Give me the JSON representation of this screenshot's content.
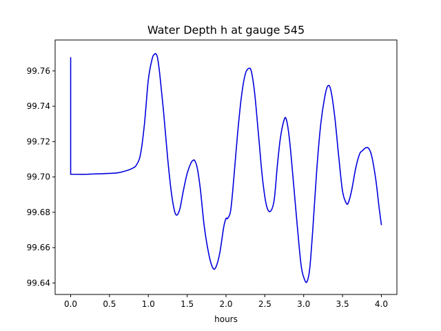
{
  "chart_data": {
    "type": "line",
    "title": "Water Depth h at gauge 545",
    "xlabel": "hours",
    "ylabel": "",
    "xlim": [
      -0.2,
      4.2
    ],
    "ylim": [
      99.6335,
      99.7775
    ],
    "xticks": [
      0.0,
      0.5,
      1.0,
      1.5,
      2.0,
      2.5,
      3.0,
      3.5,
      4.0
    ],
    "xtick_labels": [
      "0.0",
      "0.5",
      "1.0",
      "1.5",
      "2.0",
      "2.5",
      "3.0",
      "3.5",
      "4.0"
    ],
    "yticks": [
      99.64,
      99.66,
      99.68,
      99.7,
      99.72,
      99.74,
      99.76
    ],
    "ytick_labels": [
      "99.64",
      "99.66",
      "99.68",
      "99.70",
      "99.72",
      "99.74",
      "99.76"
    ],
    "grid": false,
    "series": [
      {
        "color": "#0000dd",
        "x": [
          0.0,
          0.0,
          0.1,
          0.2,
          0.3,
          0.4,
          0.5,
          0.6,
          0.7,
          0.8,
          0.85,
          0.9,
          0.95,
          1.0,
          1.05,
          1.08,
          1.1,
          1.12,
          1.15,
          1.2,
          1.25,
          1.3,
          1.35,
          1.4,
          1.45,
          1.5,
          1.55,
          1.58,
          1.6,
          1.63,
          1.67,
          1.72,
          1.78,
          1.83,
          1.87,
          1.92,
          1.97,
          2.0,
          2.02,
          2.06,
          2.1,
          2.15,
          2.2,
          2.25,
          2.3,
          2.33,
          2.37,
          2.42,
          2.47,
          2.52,
          2.57,
          2.62,
          2.66,
          2.7,
          2.75,
          2.78,
          2.82,
          2.87,
          2.92,
          2.97,
          3.02,
          3.05,
          3.08,
          3.12,
          3.17,
          3.22,
          3.27,
          3.31,
          3.35,
          3.4,
          3.45,
          3.5,
          3.55,
          3.58,
          3.62,
          3.67,
          3.72,
          3.76,
          3.8,
          3.84,
          3.88,
          3.93,
          3.97,
          4.0
        ],
        "y": [
          99.7675,
          99.7015,
          99.7015,
          99.7015,
          99.7017,
          99.7018,
          99.702,
          99.7023,
          99.7033,
          99.705,
          99.707,
          99.713,
          99.73,
          99.755,
          99.767,
          99.7695,
          99.7695,
          99.767,
          99.757,
          99.735,
          99.71,
          99.69,
          99.679,
          99.681,
          99.692,
          99.702,
          99.708,
          99.7095,
          99.709,
          99.705,
          99.693,
          99.672,
          99.656,
          99.6485,
          99.649,
          99.657,
          99.6715,
          99.6765,
          99.6765,
          99.681,
          99.699,
          99.725,
          99.746,
          99.7585,
          99.7615,
          99.759,
          99.747,
          99.723,
          99.699,
          99.684,
          99.6805,
          99.687,
          99.706,
          99.722,
          99.7325,
          99.732,
          99.72,
          99.696,
          99.671,
          99.649,
          99.641,
          99.6415,
          99.649,
          99.672,
          99.705,
          99.73,
          99.745,
          99.7515,
          99.749,
          99.734,
          99.712,
          99.692,
          99.685,
          99.686,
          99.693,
          99.705,
          99.713,
          99.715,
          99.7165,
          99.716,
          99.711,
          99.698,
          99.683,
          99.673
        ]
      }
    ]
  }
}
